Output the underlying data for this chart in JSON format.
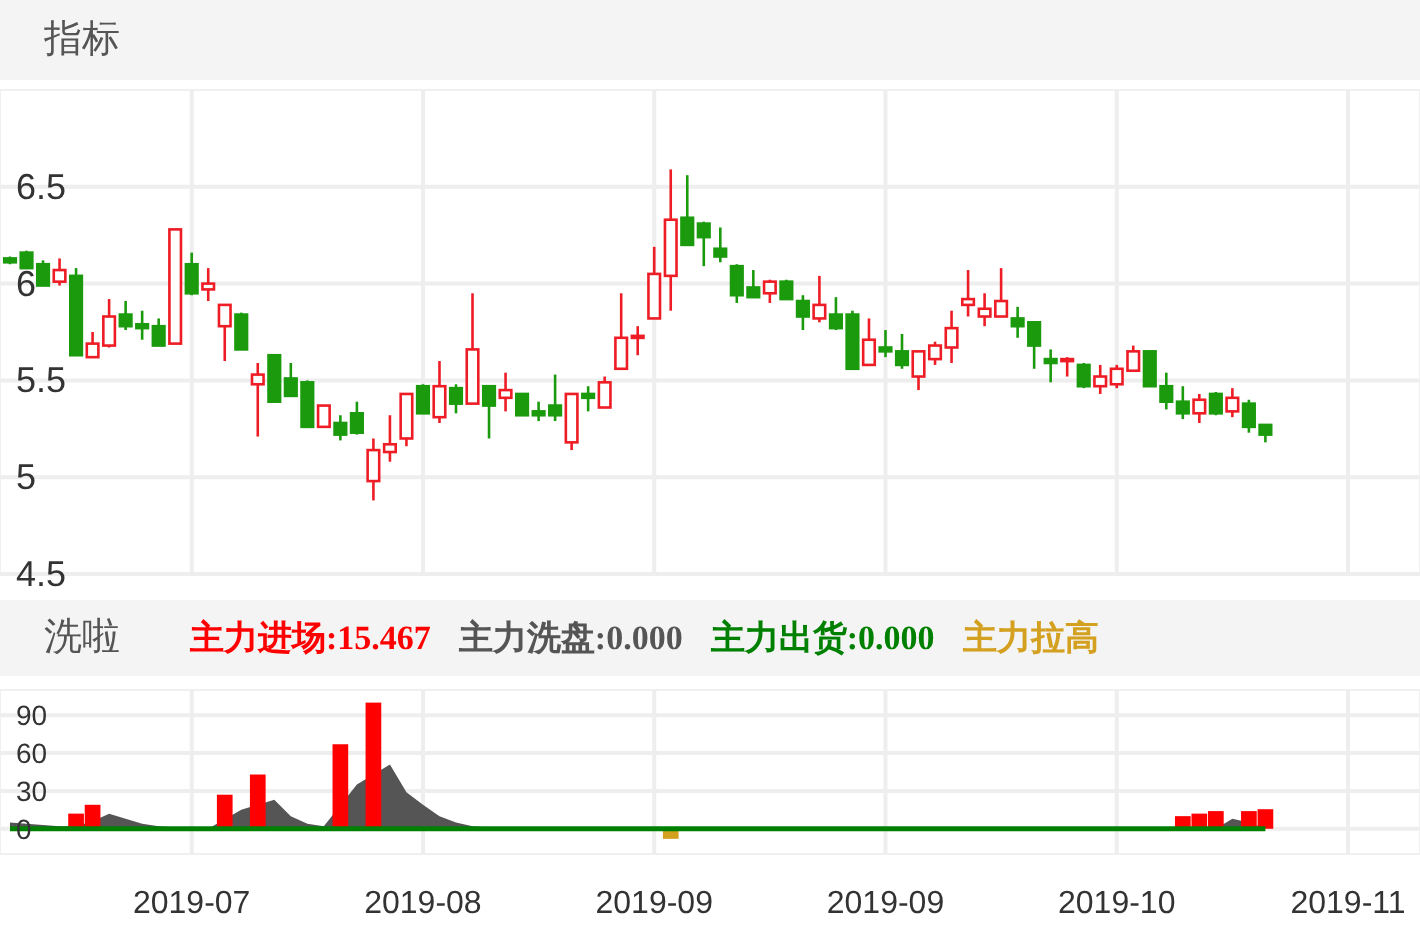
{
  "chart_data": [
    {
      "type": "candlestick",
      "title": "指标",
      "tick_labels": "y",
      "grid": true,
      "categories": [
        null,
        null,
        null,
        null,
        null,
        null,
        null,
        null,
        null,
        null,
        null,
        "2019-07",
        null,
        null,
        null,
        null,
        null,
        null,
        null,
        null,
        null,
        null,
        null,
        null,
        null,
        "2019-08",
        null,
        null,
        null,
        null,
        null,
        null,
        null,
        null,
        null,
        null,
        null,
        null,
        null,
        "2019-09",
        null,
        null,
        null,
        null,
        null,
        null,
        null,
        null,
        null,
        null,
        null,
        null,
        null,
        "2019-09",
        null,
        null,
        null,
        null,
        null,
        null,
        null,
        null,
        null,
        null,
        null,
        null,
        null,
        "2019-10",
        null,
        null,
        null,
        null,
        null,
        null,
        null,
        null,
        null,
        null,
        null,
        null,
        null,
        "2019-11"
      ],
      "ylim": [
        4.5,
        7.0
      ],
      "yticks": [
        4.5,
        5,
        5.5,
        6,
        6.5
      ],
      "ohlc": [
        [
          6.13,
          6.14,
          6.1,
          6.11
        ],
        [
          6.16,
          6.17,
          6.08,
          6.08
        ],
        [
          6.1,
          6.12,
          5.99,
          5.99
        ],
        [
          6.01,
          6.13,
          5.99,
          6.07
        ],
        [
          6.04,
          6.08,
          5.63,
          5.63
        ],
        [
          5.62,
          5.75,
          5.62,
          5.69
        ],
        [
          5.68,
          5.92,
          5.67,
          5.83
        ],
        [
          5.84,
          5.91,
          5.76,
          5.78
        ],
        [
          5.79,
          5.86,
          5.71,
          5.77
        ],
        [
          5.78,
          5.82,
          5.68,
          5.68
        ],
        [
          5.69,
          6.28,
          5.69,
          6.28
        ],
        [
          6.1,
          6.16,
          5.94,
          5.95
        ],
        [
          5.97,
          6.08,
          5.91,
          6.0
        ],
        [
          5.78,
          5.89,
          5.6,
          5.89
        ],
        [
          5.84,
          5.85,
          5.66,
          5.66
        ],
        [
          5.48,
          5.59,
          5.21,
          5.53
        ],
        [
          5.63,
          5.63,
          5.39,
          5.39
        ],
        [
          5.51,
          5.59,
          5.42,
          5.42
        ],
        [
          5.49,
          5.5,
          5.26,
          5.26
        ],
        [
          5.26,
          5.37,
          5.26,
          5.37
        ],
        [
          5.28,
          5.32,
          5.19,
          5.22
        ],
        [
          5.33,
          5.39,
          5.22,
          5.23
        ],
        [
          4.98,
          5.2,
          4.88,
          5.14
        ],
        [
          5.13,
          5.32,
          5.08,
          5.17
        ],
        [
          5.2,
          5.43,
          5.16,
          5.43
        ],
        [
          5.47,
          5.48,
          5.33,
          5.33
        ],
        [
          5.31,
          5.6,
          5.28,
          5.47
        ],
        [
          5.46,
          5.48,
          5.33,
          5.38
        ],
        [
          5.38,
          5.95,
          5.38,
          5.66
        ],
        [
          5.47,
          5.47,
          5.2,
          5.37
        ],
        [
          5.41,
          5.54,
          5.34,
          5.45
        ],
        [
          5.43,
          5.43,
          5.32,
          5.32
        ],
        [
          5.34,
          5.39,
          5.29,
          5.32
        ],
        [
          5.37,
          5.53,
          5.29,
          5.32
        ],
        [
          5.18,
          5.43,
          5.14,
          5.43
        ],
        [
          5.43,
          5.47,
          5.34,
          5.41
        ],
        [
          5.36,
          5.52,
          5.36,
          5.49
        ],
        [
          5.56,
          5.95,
          5.56,
          5.72
        ],
        [
          5.72,
          5.78,
          5.63,
          5.73
        ],
        [
          5.82,
          6.19,
          5.82,
          6.05
        ],
        [
          6.04,
          6.59,
          5.86,
          6.33
        ],
        [
          6.34,
          6.56,
          6.2,
          6.2
        ],
        [
          6.31,
          6.32,
          6.09,
          6.24
        ],
        [
          6.18,
          6.29,
          6.11,
          6.14
        ],
        [
          6.09,
          6.1,
          5.9,
          5.94
        ],
        [
          5.98,
          6.07,
          5.93,
          5.93
        ],
        [
          5.95,
          6.02,
          5.9,
          6.01
        ],
        [
          6.01,
          6.02,
          5.92,
          5.92
        ],
        [
          5.91,
          5.94,
          5.76,
          5.83
        ],
        [
          5.82,
          6.04,
          5.8,
          5.89
        ],
        [
          5.84,
          5.93,
          5.76,
          5.77
        ],
        [
          5.84,
          5.86,
          5.56,
          5.56
        ],
        [
          5.58,
          5.82,
          5.58,
          5.71
        ],
        [
          5.67,
          5.76,
          5.62,
          5.65
        ],
        [
          5.65,
          5.74,
          5.56,
          5.58
        ],
        [
          5.52,
          5.65,
          5.45,
          5.65
        ],
        [
          5.61,
          5.7,
          5.58,
          5.68
        ],
        [
          5.67,
          5.86,
          5.59,
          5.77
        ],
        [
          5.89,
          6.07,
          5.83,
          5.92
        ],
        [
          5.83,
          5.95,
          5.78,
          5.87
        ],
        [
          5.83,
          6.08,
          5.83,
          5.91
        ],
        [
          5.82,
          5.88,
          5.72,
          5.78
        ],
        [
          5.8,
          5.8,
          5.56,
          5.68
        ],
        [
          5.61,
          5.66,
          5.49,
          5.59
        ],
        [
          5.6,
          5.62,
          5.52,
          5.61
        ],
        [
          5.58,
          5.59,
          5.46,
          5.47
        ],
        [
          5.47,
          5.58,
          5.43,
          5.52
        ],
        [
          5.48,
          5.58,
          5.46,
          5.56
        ],
        [
          5.55,
          5.68,
          5.55,
          5.65
        ],
        [
          5.65,
          5.65,
          5.47,
          5.47
        ],
        [
          5.47,
          5.54,
          5.35,
          5.39
        ],
        [
          5.39,
          5.47,
          5.3,
          5.33
        ],
        [
          5.33,
          5.43,
          5.28,
          5.4
        ],
        [
          5.43,
          5.44,
          5.32,
          5.33
        ],
        [
          5.34,
          5.46,
          5.31,
          5.41
        ],
        [
          5.38,
          5.4,
          5.23,
          5.26
        ],
        [
          5.27,
          5.27,
          5.18,
          5.22
        ],
        null,
        null,
        null,
        null,
        null
      ]
    },
    {
      "type": "bar",
      "title": "洗啦",
      "grid": true,
      "legend": "top",
      "categories": [
        null,
        null,
        null,
        null,
        null,
        null,
        null,
        null,
        null,
        null,
        null,
        "2019-07",
        null,
        null,
        null,
        null,
        null,
        null,
        null,
        null,
        null,
        null,
        null,
        null,
        null,
        "2019-08",
        null,
        null,
        null,
        null,
        null,
        null,
        null,
        null,
        null,
        null,
        null,
        null,
        null,
        "2019-09",
        null,
        null,
        null,
        null,
        null,
        null,
        null,
        null,
        null,
        null,
        null,
        null,
        null,
        "2019-09",
        null,
        null,
        null,
        null,
        null,
        null,
        null,
        null,
        null,
        null,
        null,
        null,
        null,
        "2019-10",
        null,
        null,
        null,
        null,
        null,
        null,
        null,
        null,
        null,
        null,
        null,
        null,
        null,
        "2019-11"
      ],
      "ylim": [
        -20,
        110
      ],
      "yticks": [
        0,
        30,
        60,
        90
      ],
      "series": [
        {
          "name": "主力进场:15.467",
          "type": "bar",
          "color": "#ff0000",
          "values": [
            null,
            null,
            null,
            null,
            12,
            19,
            null,
            null,
            null,
            null,
            null,
            null,
            null,
            27,
            null,
            43,
            null,
            null,
            null,
            null,
            67,
            null,
            100,
            null,
            null,
            null,
            null,
            null,
            null,
            null,
            null,
            null,
            null,
            null,
            null,
            null,
            null,
            null,
            null,
            null,
            null,
            null,
            null,
            null,
            null,
            null,
            null,
            null,
            null,
            null,
            null,
            null,
            null,
            null,
            null,
            null,
            null,
            null,
            null,
            null,
            null,
            null,
            null,
            null,
            null,
            null,
            null,
            null,
            null,
            null,
            null,
            10,
            12,
            14,
            null,
            14,
            15.5,
            null,
            null,
            null,
            null,
            null
          ]
        },
        {
          "name": "主力洗盘:0.000",
          "type": "area",
          "color": "#555555",
          "values": [
            5,
            4,
            3,
            2,
            2,
            6,
            12,
            8,
            4,
            2,
            1,
            0,
            0,
            null,
            15,
            null,
            23,
            10,
            4,
            2,
            null,
            35,
            null,
            51,
            29,
            19,
            10,
            5,
            2,
            1,
            0,
            0,
            0,
            0,
            0,
            0,
            0,
            0,
            0,
            0,
            0,
            0,
            0,
            0,
            0,
            0,
            0,
            0,
            0,
            0,
            0,
            0,
            0,
            0,
            0,
            0,
            0,
            0,
            0,
            0,
            0,
            0,
            0,
            0,
            0,
            0,
            0,
            0,
            0,
            0,
            0,
            0,
            0,
            0,
            8,
            5,
            0,
            null,
            null,
            null,
            null,
            null
          ]
        },
        {
          "name": "主力出货:0.000",
          "type": "line",
          "color": "#008000",
          "values": [
            0,
            0,
            0,
            0,
            0,
            0,
            0,
            0,
            0,
            0,
            0,
            0,
            0,
            0,
            0,
            0,
            0,
            0,
            0,
            0,
            0,
            0,
            0,
            0,
            0,
            0,
            0,
            0,
            0,
            0,
            0,
            0,
            0,
            0,
            0,
            0,
            0,
            0,
            0,
            0,
            0,
            0,
            0,
            0,
            0,
            0,
            0,
            0,
            0,
            0,
            0,
            0,
            0,
            0,
            0,
            0,
            0,
            0,
            0,
            0,
            0,
            0,
            0,
            0,
            0,
            0,
            0,
            0,
            0,
            0,
            0,
            0,
            0,
            0,
            0,
            0,
            0,
            null,
            null,
            null,
            null,
            null
          ]
        },
        {
          "name": "主力拉高",
          "type": "bar",
          "color": "#d4a020",
          "values": [
            null,
            null,
            null,
            null,
            null,
            null,
            null,
            null,
            null,
            null,
            null,
            null,
            null,
            null,
            null,
            null,
            null,
            null,
            null,
            null,
            null,
            null,
            null,
            null,
            null,
            null,
            null,
            null,
            null,
            null,
            null,
            null,
            null,
            null,
            null,
            null,
            null,
            null,
            null,
            null,
            -8,
            null,
            null,
            null,
            null,
            null,
            null,
            null,
            null,
            null,
            null,
            null,
            null,
            null,
            null,
            null,
            null,
            null,
            null,
            null,
            null,
            null,
            null,
            null,
            null,
            null,
            null,
            null,
            null,
            null,
            null,
            null,
            null,
            null,
            null,
            null,
            null,
            null,
            null,
            null,
            null,
            null
          ]
        }
      ]
    }
  ]
}
